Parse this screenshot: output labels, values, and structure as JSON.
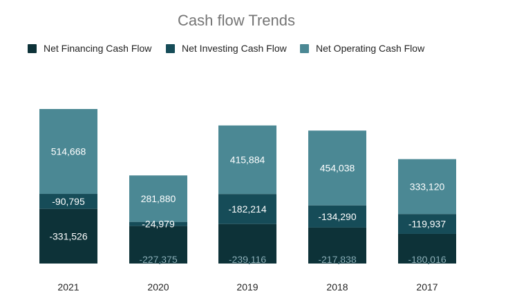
{
  "chart_data": {
    "type": "bar",
    "stacked": true,
    "title": "Cash flow Trends",
    "legend_position": "top-left",
    "categories": [
      "2021",
      "2020",
      "2019",
      "2018",
      "2017"
    ],
    "series": [
      {
        "name": "Net Financing Cash Flow",
        "color": "#0d3238",
        "values": [
          -331526,
          -227375,
          -239116,
          -217838,
          -180016
        ],
        "labels": [
          "-331,526",
          "-227,375",
          "-239,116",
          "-217,838",
          "-180,016"
        ]
      },
      {
        "name": "Net Investing Cash Flow",
        "color": "#164c58",
        "values": [
          -90795,
          -24979,
          -182214,
          -134290,
          -119937
        ],
        "labels": [
          "-90,795",
          "-24,979",
          "-182,214",
          "-134,290",
          "-119,937"
        ]
      },
      {
        "name": "Net Operating Cash Flow",
        "color": "#4b8894",
        "values": [
          514668,
          281880,
          415884,
          454038,
          333120
        ],
        "labels": [
          "514,668",
          "281,880",
          "415,884",
          "454,038",
          "333,120"
        ]
      }
    ],
    "grid": false
  }
}
